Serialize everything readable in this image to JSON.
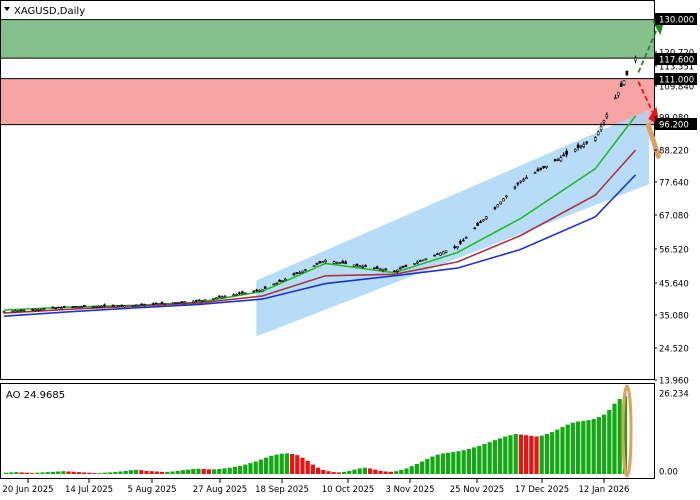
{
  "header": {
    "symbol_label": "XAGUSD,Daily",
    "menu_icon": "triangle-down-icon"
  },
  "indicator": {
    "label": "AO 24.9685"
  },
  "colors": {
    "green_zone": "#85c18c",
    "red_zone": "#f7a4a4",
    "channel": "#aad6f7",
    "ma_fast": "#22bb22",
    "ma_mid": "#aa3344",
    "ma_slow": "#1f33cc",
    "ao_up": "#11aa11",
    "ao_down": "#ee1111",
    "arrow_up": "#1a8a1a",
    "arrow_down": "#ee1111",
    "highlight": "#e0a060"
  },
  "chart_data": [
    {
      "type": "candlestick",
      "title": "XAGUSD,Daily",
      "x_tick_labels": [
        "20 Jun 2025",
        "14 Jul 2025",
        "5 Aug 2025",
        "27 Aug 2025",
        "18 Sep 2025",
        "10 Oct 2025",
        "3 Nov 2025",
        "25 Nov 2025",
        "17 Dec 2025",
        "12 Jan 2026"
      ],
      "y_tick_labels": [
        "130.000",
        "120.720",
        "117.600",
        "113.351",
        "111.000",
        "109.840",
        "99.080",
        "96.200",
        "88.220",
        "77.640",
        "67.080",
        "56.520",
        "45.640",
        "35.080",
        "24.520",
        "13.960"
      ],
      "ylim": [
        13.96,
        136.0
      ],
      "grid": false,
      "price_path_approx": [
        {
          "date": "2025-06-20",
          "close": 36.0
        },
        {
          "date": "2025-07-14",
          "close": 37.5
        },
        {
          "date": "2025-08-05",
          "close": 38.0
        },
        {
          "date": "2025-08-27",
          "close": 39.5
        },
        {
          "date": "2025-09-18",
          "close": 43.0
        },
        {
          "date": "2025-10-10",
          "close": 52.5
        },
        {
          "date": "2025-11-03",
          "close": 49.0
        },
        {
          "date": "2025-11-25",
          "close": 57.0
        },
        {
          "date": "2025-12-17",
          "close": 78.0
        },
        {
          "date": "2026-01-12",
          "close": 92.0
        },
        {
          "date": "2026-01-26",
          "close": 117.6
        }
      ],
      "levels": [
        {
          "label": "130.000",
          "value": 130.0,
          "kind": "target-upper"
        },
        {
          "label": "117.600",
          "value": 117.6,
          "kind": "current-high"
        },
        {
          "label": "111.000",
          "value": 111.0,
          "kind": "resistance"
        },
        {
          "label": "96.200",
          "value": 96.2,
          "kind": "support"
        }
      ],
      "zones": [
        {
          "name": "buy-zone",
          "from": 117.6,
          "to": 130.0,
          "color": "#85c18c"
        },
        {
          "name": "sell-zone",
          "from": 96.2,
          "to": 111.0,
          "color": "#f7a4a4"
        }
      ],
      "channel": {
        "lower": [
          {
            "date": "2025-09-18",
            "value": 28.0
          },
          {
            "date": "2026-01-30",
            "value": 77.0
          }
        ],
        "upper": [
          {
            "date": "2025-09-18",
            "value": 46.0
          },
          {
            "date": "2026-01-30",
            "value": 101.0
          }
        ]
      },
      "moving_averages": [
        {
          "name": "fast",
          "points": [
            {
              "date": "2025-06-20",
              "value": 36.5
            },
            {
              "date": "2025-07-14",
              "value": 37.5
            },
            {
              "date": "2025-08-05",
              "value": 38.0
            },
            {
              "date": "2025-08-27",
              "value": 39.0
            },
            {
              "date": "2025-09-18",
              "value": 42.5
            },
            {
              "date": "2025-10-10",
              "value": 51.5
            },
            {
              "date": "2025-11-03",
              "value": 48.5
            },
            {
              "date": "2025-11-25",
              "value": 55.0
            },
            {
              "date": "2025-12-17",
              "value": 66.0
            },
            {
              "date": "2026-01-12",
              "value": 82.0
            },
            {
              "date": "2026-01-26",
              "value": 99.0
            }
          ]
        },
        {
          "name": "mid",
          "points": [
            {
              "date": "2025-06-20",
              "value": 35.5
            },
            {
              "date": "2025-07-14",
              "value": 36.8
            },
            {
              "date": "2025-08-05",
              "value": 37.8
            },
            {
              "date": "2025-08-27",
              "value": 38.8
            },
            {
              "date": "2025-09-18",
              "value": 41.0
            },
            {
              "date": "2025-10-10",
              "value": 47.5
            },
            {
              "date": "2025-11-03",
              "value": 48.0
            },
            {
              "date": "2025-11-25",
              "value": 52.0
            },
            {
              "date": "2025-12-17",
              "value": 60.5
            },
            {
              "date": "2026-01-12",
              "value": 73.5
            },
            {
              "date": "2026-01-26",
              "value": 88.0
            }
          ]
        },
        {
          "name": "slow",
          "points": [
            {
              "date": "2025-06-20",
              "value": 34.5
            },
            {
              "date": "2025-07-14",
              "value": 36.0
            },
            {
              "date": "2025-08-05",
              "value": 37.2
            },
            {
              "date": "2025-08-27",
              "value": 38.3
            },
            {
              "date": "2025-09-18",
              "value": 40.0
            },
            {
              "date": "2025-10-10",
              "value": 45.0
            },
            {
              "date": "2025-11-03",
              "value": 47.5
            },
            {
              "date": "2025-11-25",
              "value": 50.0
            },
            {
              "date": "2025-12-17",
              "value": 56.0
            },
            {
              "date": "2026-01-12",
              "value": 66.5
            },
            {
              "date": "2026-01-26",
              "value": 80.0
            }
          ]
        }
      ]
    },
    {
      "type": "bar",
      "title": "AO 24.9685",
      "y_tick_labels": [
        "26.234",
        "0.00"
      ],
      "ylim": [
        0,
        26.234
      ],
      "values_approx": [
        0.4,
        0.5,
        0.6,
        0.5,
        0.4,
        0.3,
        0.4,
        0.5,
        0.6,
        0.7,
        0.8,
        0.9,
        0.8,
        0.7,
        0.6,
        0.5,
        0.4,
        0.3,
        0.3,
        0.4,
        0.5,
        0.6,
        0.8,
        1.0,
        1.2,
        1.3,
        1.2,
        1.0,
        0.9,
        0.8,
        0.7,
        0.7,
        0.8,
        1.0,
        1.2,
        1.4,
        1.6,
        1.7,
        1.6,
        1.5,
        1.5,
        1.6,
        1.8,
        2.0,
        2.3,
        2.6,
        3.0,
        3.5,
        4.0,
        4.6,
        5.2,
        5.8,
        6.2,
        6.5,
        6.6,
        6.4,
        6.0,
        5.2,
        4.2,
        3.0,
        2.0,
        1.3,
        0.9,
        0.6,
        0.5,
        0.7,
        1.0,
        1.4,
        1.8,
        2.0,
        1.8,
        1.4,
        1.0,
        0.8,
        0.7,
        0.9,
        1.3,
        1.8,
        2.5,
        3.2,
        4.0,
        4.8,
        5.6,
        6.2,
        6.6,
        6.8,
        7.0,
        7.3,
        7.6,
        8.0,
        8.5,
        9.0,
        9.6,
        10.2,
        10.8,
        11.4,
        12.0,
        12.4,
        12.8,
        12.6,
        12.4,
        12.2,
        12.0,
        12.3,
        12.8,
        13.4,
        14.2,
        15.0,
        15.8,
        16.4,
        16.8,
        17.0,
        17.2,
        17.6,
        18.2,
        19.0,
        20.5,
        22.5,
        24.0,
        24.97
      ],
      "current_value": 24.9685
    }
  ]
}
